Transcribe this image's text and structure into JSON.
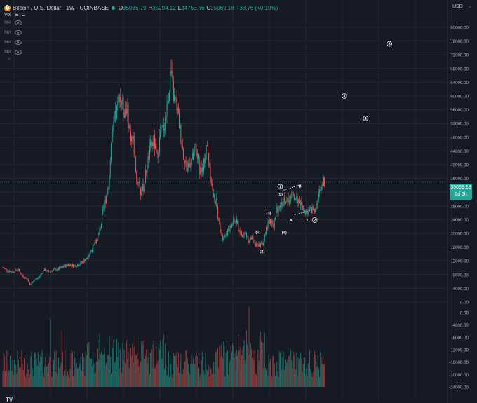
{
  "header": {
    "symbol": "Bitcoin / U.S. Dollar · 1W · COINBASE",
    "open": "35035.79",
    "high": "35294.12",
    "low": "34753.66",
    "close": "35069.18",
    "change": "+33.76 (+0.10%)",
    "open_key": "O",
    "high_key": "H",
    "low_key": "L",
    "close_key": "C"
  },
  "volume_label": "Vol · BTC",
  "ma_label": "MA",
  "currency": "USD",
  "last_price": {
    "value": "35069.18",
    "countdown": "6d 5h"
  },
  "colors": {
    "up": "#26a69a",
    "down": "#ef5350",
    "background": "#161a25",
    "grid": "#232734",
    "text": "#d1d4dc"
  },
  "chart_data": [
    {
      "type": "candlestick",
      "ylim": [
        0,
        84000
      ],
      "price_ticks": [
        "80000.00",
        "76000.00",
        "72000.00",
        "68000.00",
        "64000.00",
        "60000.00",
        "56000.00",
        "52000.00",
        "48000.00",
        "44000.00",
        "40000.00",
        "36000.00",
        "32000.00",
        "28000.00",
        "24000.00",
        "20000.00",
        "16000.00",
        "12000.00",
        "8000.00",
        "4000.00",
        "0.00"
      ],
      "close_path": [
        [
          0,
          10000
        ],
        [
          6,
          9200
        ],
        [
          12,
          8800
        ],
        [
          18,
          9600
        ],
        [
          24,
          7600
        ],
        [
          30,
          6800
        ],
        [
          33,
          4900
        ],
        [
          38,
          6400
        ],
        [
          44,
          7200
        ],
        [
          50,
          9400
        ],
        [
          56,
          8900
        ],
        [
          62,
          9400
        ],
        [
          68,
          9600
        ],
        [
          74,
          10400
        ],
        [
          80,
          11000
        ],
        [
          86,
          10600
        ],
        [
          92,
          10900
        ],
        [
          98,
          11800
        ],
        [
          104,
          13600
        ],
        [
          110,
          15800
        ],
        [
          116,
          19000
        ],
        [
          120,
          23000
        ],
        [
          124,
          29000
        ],
        [
          128,
          33000
        ],
        [
          130,
          37000
        ],
        [
          132,
          46000
        ],
        [
          136,
          52000
        ],
        [
          140,
          57000
        ],
        [
          142,
          61000
        ],
        [
          145,
          58000
        ],
        [
          148,
          56000
        ],
        [
          151,
          57000
        ],
        [
          155,
          49000
        ],
        [
          159,
          47000
        ],
        [
          163,
          36000
        ],
        [
          166,
          35000
        ],
        [
          168,
          32000
        ],
        [
          172,
          34000
        ],
        [
          176,
          40000
        ],
        [
          180,
          45000
        ],
        [
          184,
          47000
        ],
        [
          188,
          42000
        ],
        [
          192,
          49000
        ],
        [
          196,
          51000
        ],
        [
          200,
          56000
        ],
        [
          202,
          61000
        ],
        [
          205,
          67000
        ],
        [
          208,
          60000
        ],
        [
          212,
          57000
        ],
        [
          216,
          50000
        ],
        [
          220,
          43000
        ],
        [
          224,
          39000
        ],
        [
          228,
          41000
        ],
        [
          232,
          42000
        ],
        [
          236,
          44000
        ],
        [
          240,
          39000
        ],
        [
          244,
          38000
        ],
        [
          248,
          46000
        ],
        [
          252,
          40000
        ],
        [
          256,
          31000
        ],
        [
          260,
          29000
        ],
        [
          264,
          22000
        ],
        [
          268,
          19000
        ],
        [
          272,
          20000
        ],
        [
          276,
          21000
        ],
        [
          280,
          23000
        ],
        [
          284,
          24000
        ],
        [
          288,
          21000
        ],
        [
          292,
          19000
        ],
        [
          296,
          20000
        ],
        [
          300,
          18000
        ],
        [
          304,
          18500
        ],
        [
          308,
          17000
        ],
        [
          310,
          16000
        ],
        [
          314,
          16600
        ],
        [
          318,
          17500
        ],
        [
          320,
          21000
        ],
        [
          324,
          23000
        ],
        [
          326,
          24000
        ],
        [
          330,
          22000
        ],
        [
          334,
          27000
        ],
        [
          338,
          28500
        ],
        [
          341,
          29000
        ],
        [
          345,
          30000
        ],
        [
          348,
          29000
        ],
        [
          352,
          31000
        ],
        [
          356,
          30500
        ],
        [
          360,
          29500
        ],
        [
          364,
          28000
        ],
        [
          368,
          26500
        ],
        [
          372,
          25800
        ],
        [
          376,
          26800
        ],
        [
          380,
          27200
        ],
        [
          384,
          30000
        ],
        [
          388,
          34000
        ],
        [
          392,
          35069
        ]
      ],
      "last_close": 35069.18
    },
    {
      "type": "bar",
      "title": "Vol · BTC",
      "ylim": [
        -24000,
        4000
      ],
      "y_ticks": [
        "0.00",
        "-4000.00",
        "-8000.00",
        "-12000.00",
        "-16000.00",
        "-20000.00",
        "-24000.00"
      ],
      "peak_volumes": [
        {
          "week": 58,
          "volume": 22000
        },
        {
          "week": 72,
          "volume": 18000
        },
        {
          "week": 155,
          "volume": 14000
        },
        {
          "week": 287,
          "volume": 17000
        },
        {
          "week": 294,
          "volume": 15000
        },
        {
          "week": 300,
          "volume": 26000
        }
      ]
    }
  ],
  "elliott_labels": [
    {
      "text": "(1)",
      "week": 311,
      "price": 20500
    },
    {
      "text": "(2)",
      "week": 316,
      "price": 14800
    },
    {
      "text": "(3)",
      "week": 324,
      "price": 26000
    },
    {
      "text": "(4)",
      "week": 343,
      "price": 20300
    },
    {
      "text": "(5)",
      "week": 338,
      "price": 31500
    },
    {
      "text": "1",
      "circled": true,
      "week": 338,
      "price": 33600
    },
    {
      "text": "B",
      "week": 362,
      "price": 33800
    },
    {
      "text": "A",
      "week": 351,
      "price": 23900
    },
    {
      "text": "C",
      "week": 372,
      "price": 23900
    },
    {
      "text": "2",
      "circled": true,
      "week": 380,
      "price": 23900
    },
    {
      "text": "3",
      "circled": true,
      "week": 416,
      "price": 60000
    },
    {
      "text": "4",
      "circled": true,
      "week": 442,
      "price": 53500
    },
    {
      "text": "5",
      "circled": true,
      "week": 471,
      "price": 75200
    }
  ]
}
